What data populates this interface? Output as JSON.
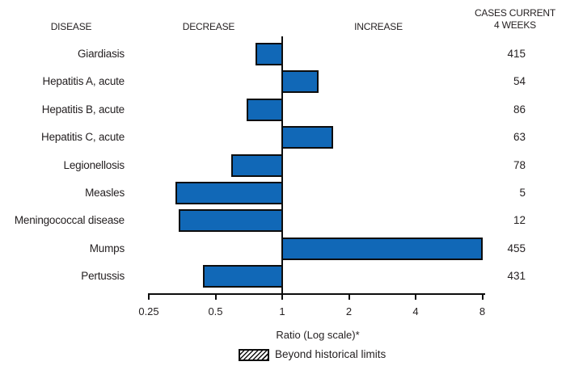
{
  "header": {
    "disease": "DISEASE",
    "decrease": "DECREASE",
    "increase": "INCREASE",
    "cases_line1": "CASES CURRENT",
    "cases_line2": "4 WEEKS"
  },
  "axis": {
    "label": "Ratio (Log scale)*",
    "ticks": [
      "0.25",
      "0.5",
      "1",
      "2",
      "4",
      "8"
    ],
    "tick_values": [
      0.25,
      0.5,
      1,
      2,
      4,
      8
    ]
  },
  "legend": {
    "swatch": "hatched-box",
    "label": "Beyond historical limits"
  },
  "colors": {
    "bar_fill": "#1168b7",
    "bar_border": "#0d0d0d",
    "text": "#231f20",
    "axis": "#0d0d0d"
  },
  "chart_data": {
    "type": "bar",
    "orientation": "horizontal",
    "scale": "log2",
    "baseline": 1,
    "xlim": [
      0.25,
      8
    ],
    "xlabel": "Ratio (Log scale)*",
    "grid": false,
    "legend_position": "bottom",
    "legend_entries": [
      "Beyond historical limits"
    ],
    "categories": [
      "Giardiasis",
      "Hepatitis A, acute",
      "Hepatitis B, acute",
      "Hepatitis C, acute",
      "Legionellosis",
      "Measles",
      "Meningococcal disease",
      "Mumps",
      "Pertussis"
    ],
    "series": [
      {
        "name": "Ratio (Log scale)",
        "values": [
          0.76,
          1.46,
          0.69,
          1.7,
          0.59,
          0.33,
          0.34,
          8.0,
          0.44
        ]
      },
      {
        "name": "Cases current 4 weeks",
        "values": [
          415,
          54,
          86,
          63,
          78,
          5,
          12,
          455,
          431
        ]
      }
    ]
  }
}
